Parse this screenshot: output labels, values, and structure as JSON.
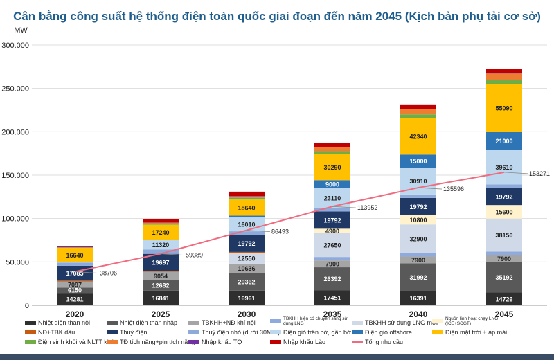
{
  "chart_data": {
    "type": "bar",
    "stacked": true,
    "title": "Cân bằng công suất hệ thống điện toàn quốc giai đoạn đến năm 2045 (Kịch bản phụ tải cơ sở)",
    "ylabel": "MW",
    "ylim": [
      0,
      300000
    ],
    "yticks": [
      "0",
      "50.000",
      "100.000",
      "150.000",
      "200.000",
      "250.000",
      "300.000"
    ],
    "categories": [
      "2020",
      "2025",
      "2030",
      "2035",
      "2040",
      "2045"
    ],
    "grid": true,
    "legend_position": "bottom",
    "series": [
      {
        "name": "Nhiệt điện than nội",
        "color": "#2f2f2f",
        "values": [
          14281,
          16841,
          16961,
          17451,
          16391,
          14726
        ],
        "labels": [
          "14281",
          "16841",
          "16961",
          "17451",
          "16391",
          "14726"
        ]
      },
      {
        "name": "Nhiệt điện than nhập",
        "color": "#595959",
        "values": [
          6150,
          12682,
          20362,
          26392,
          31992,
          35192
        ],
        "labels": [
          "6150",
          "12682",
          "20362",
          "26392",
          "31992",
          "35192"
        ]
      },
      {
        "name": "TBKHH+NĐ khí nội",
        "color": "#a5a5a5",
        "values": [
          7097,
          9054,
          10636,
          7900,
          7900,
          7900
        ],
        "labels": [
          "7097",
          "9054",
          "10636",
          "7900",
          "7900",
          "7900"
        ]
      },
      {
        "name": "TBKHH hiện có chuyển sang sử dụng LNG",
        "color": "#8faadc",
        "values": [
          0,
          0,
          0,
          4000,
          4000,
          4000
        ],
        "labels": [
          "",
          "",
          "",
          "",
          "",
          ""
        ]
      },
      {
        "name": "TBKHH sử dụng LNG mới",
        "color": "#d0d9e8",
        "values": [
          0,
          0,
          12550,
          27650,
          32900,
          38150
        ],
        "labels": [
          "",
          "",
          "12550",
          "27650",
          "32900",
          "38150"
        ]
      },
      {
        "name": "Nguồn linh hoạt chạy LNG (ICE+SCGT)",
        "color": "#fff2cc",
        "values": [
          0,
          0,
          0,
          4900,
          10800,
          15600
        ],
        "labels": [
          "",
          "",
          "",
          "4900",
          "10800",
          "15600"
        ]
      },
      {
        "name": "NĐ+TBK dầu",
        "color": "#c55a11",
        "values": [
          1000,
          1000,
          1000,
          0,
          0,
          0
        ],
        "labels": [
          "",
          "",
          "",
          "",
          "",
          ""
        ]
      },
      {
        "name": "Thuỷ điện",
        "color": "#1f3864",
        "values": [
          17085,
          19697,
          19792,
          19792,
          19792,
          19792
        ],
        "labels": [
          "17085",
          "19697",
          "19792",
          "19792",
          "19792",
          "19792"
        ]
      },
      {
        "name": "Thuỷ điện nhỏ (dưới 30MW)",
        "color": "#8eaadb",
        "values": [
          3500,
          5000,
          4000,
          4000,
          4000,
          4000
        ],
        "labels": [
          "",
          "",
          "",
          "",
          "",
          ""
        ]
      },
      {
        "name": "Điện gió trên bờ, gần bờ",
        "color": "#bdd7ee",
        "values": [
          600,
          11320,
          16010,
          23110,
          30910,
          39610
        ],
        "labels": [
          "",
          "11320",
          "16010",
          "23110",
          "30910",
          "39610"
        ]
      },
      {
        "name": "Điện gió offshore",
        "color": "#2e75b6",
        "values": [
          0,
          0,
          2000,
          9000,
          15000,
          21000
        ],
        "labels": [
          "",
          "",
          "",
          "9000",
          "15000",
          "21000"
        ]
      },
      {
        "name": "Điện mặt trời + áp mái",
        "color": "#ffc000",
        "values": [
          16640,
          17240,
          18640,
          30290,
          42340,
          55090
        ],
        "labels": [
          "16640",
          "17240",
          "18640",
          "30290",
          "42340",
          "55090"
        ]
      },
      {
        "name": "Điện sinh khối và NLTT khác",
        "color": "#70ad47",
        "values": [
          400,
          1000,
          2000,
          3000,
          4000,
          5000
        ],
        "labels": [
          "",
          "",
          "",
          "",
          "",
          ""
        ]
      },
      {
        "name": "TĐ tích năng+pin tích năng",
        "color": "#ed7d31",
        "values": [
          0,
          1500,
          1500,
          4500,
          6000,
          7000
        ],
        "labels": [
          "",
          "",
          "",
          "",
          "",
          ""
        ]
      },
      {
        "name": "Nhập khẩu TQ",
        "color": "#7030a0",
        "values": [
          600,
          500,
          500,
          500,
          500,
          500
        ],
        "labels": [
          "",
          "",
          "",
          "",
          "",
          ""
        ]
      },
      {
        "name": "Nhập khẩu Lào",
        "color": "#c00000",
        "values": [
          600,
          3500,
          5000,
          5000,
          5000,
          5000
        ],
        "labels": [
          "",
          "",
          "",
          "",
          "",
          ""
        ]
      }
    ],
    "line_series": {
      "name": "Tổng nhu cầu",
      "color": "#f06b7f",
      "values": [
        38706,
        59389,
        86493,
        113952,
        135596,
        153271
      ],
      "labels": [
        "38706",
        "59389",
        "86493",
        "113952",
        "135596",
        "153271"
      ]
    },
    "legend_layout": [
      [
        0,
        1,
        2,
        3,
        4,
        5
      ],
      [
        6,
        7,
        8,
        9,
        10,
        11
      ],
      [
        12,
        13,
        14,
        15,
        "line"
      ]
    ]
  }
}
